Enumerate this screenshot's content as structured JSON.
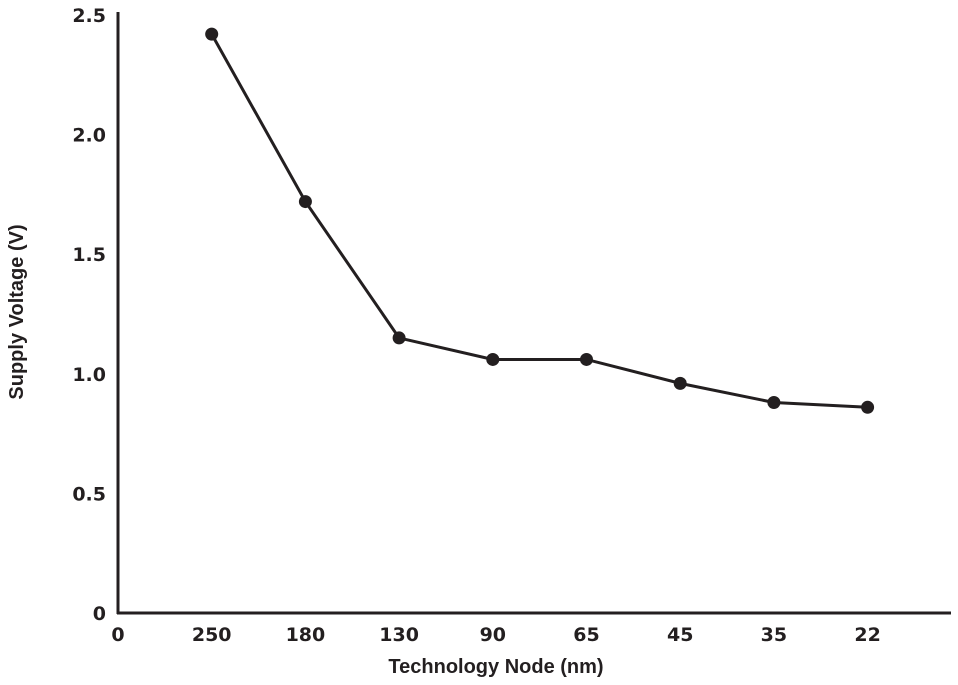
{
  "chart_data": {
    "type": "line",
    "title": "",
    "xlabel": "Technology Node (nm)",
    "ylabel": "Supply Voltage (V)",
    "x_ticks": [
      "0",
      "250",
      "180",
      "130",
      "90",
      "65",
      "45",
      "35",
      "22"
    ],
    "y_ticks": [
      "0",
      "0.5",
      "1.0",
      "1.5",
      "2.0",
      "2.5"
    ],
    "ylim": [
      0,
      2.5
    ],
    "grid": false,
    "categories": [
      "250",
      "180",
      "130",
      "90",
      "65",
      "45",
      "35",
      "22"
    ],
    "values": [
      2.42,
      1.72,
      1.15,
      1.06,
      1.06,
      0.96,
      0.88,
      0.86
    ],
    "color": "#231f20"
  }
}
